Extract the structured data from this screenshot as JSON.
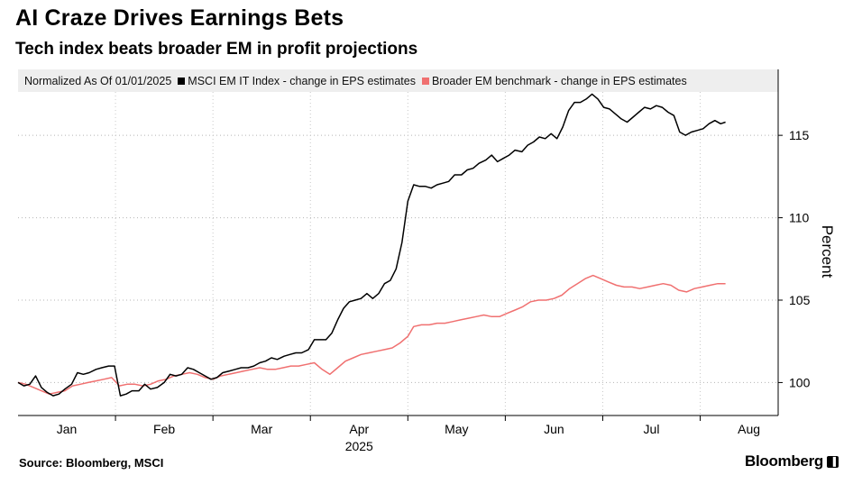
{
  "title": "AI Craze Drives Earnings Bets",
  "subtitle": "Tech index beats broader EM in profit projections",
  "source": "Source: Bloomberg, MSCI",
  "brand": "Bloomberg",
  "legend": {
    "normalized": "Normalized As Of 01/01/2025",
    "series1": "MSCI EM IT Index - change in EPS estimates",
    "series2": "Broader EM benchmark - change in EPS estimates"
  },
  "colors": {
    "series1": "#000000",
    "series2": "#f07070"
  },
  "chart_data": {
    "type": "line",
    "title": "AI Craze Drives Earnings Bets",
    "subtitle": "Tech index beats broader EM in profit projections",
    "ylabel": "Percent",
    "xlabel": "2025",
    "ylim": [
      98,
      119
    ],
    "xlim": [
      0,
      7.8
    ],
    "yticks": [
      100,
      105,
      110,
      115
    ],
    "x_tick_labels": [
      "Jan",
      "Feb",
      "Mar",
      "Apr",
      "May",
      "Jun",
      "Jul",
      "Aug"
    ],
    "x_tick_positions": [
      0.5,
      1.5,
      2.5,
      3.5,
      4.5,
      5.5,
      6.5,
      7.5
    ],
    "year_label": "2025",
    "legend_position": "top",
    "grid": "dotted-horizontal-and-monthly-vertical",
    "series": [
      {
        "name": "MSCI EM IT Index - change in EPS estimates",
        "color": "#000000",
        "points": [
          [
            0.0,
            100.0
          ],
          [
            0.06,
            99.8
          ],
          [
            0.12,
            99.9
          ],
          [
            0.18,
            100.4
          ],
          [
            0.24,
            99.7
          ],
          [
            0.3,
            99.4
          ],
          [
            0.36,
            99.2
          ],
          [
            0.42,
            99.3
          ],
          [
            0.48,
            99.6
          ],
          [
            0.55,
            99.9
          ],
          [
            0.61,
            100.6
          ],
          [
            0.67,
            100.5
          ],
          [
            0.73,
            100.6
          ],
          [
            0.8,
            100.8
          ],
          [
            0.86,
            100.9
          ],
          [
            0.93,
            101.0
          ],
          [
            0.99,
            101.0
          ],
          [
            1.05,
            99.2
          ],
          [
            1.11,
            99.3
          ],
          [
            1.17,
            99.5
          ],
          [
            1.24,
            99.5
          ],
          [
            1.3,
            99.9
          ],
          [
            1.36,
            99.6
          ],
          [
            1.43,
            99.7
          ],
          [
            1.5,
            100.0
          ],
          [
            1.56,
            100.5
          ],
          [
            1.62,
            100.4
          ],
          [
            1.68,
            100.5
          ],
          [
            1.74,
            100.9
          ],
          [
            1.8,
            100.8
          ],
          [
            1.86,
            100.6
          ],
          [
            1.92,
            100.4
          ],
          [
            1.98,
            100.2
          ],
          [
            2.04,
            100.3
          ],
          [
            2.1,
            100.6
          ],
          [
            2.17,
            100.7
          ],
          [
            2.23,
            100.8
          ],
          [
            2.29,
            100.9
          ],
          [
            2.36,
            100.9
          ],
          [
            2.42,
            101.0
          ],
          [
            2.48,
            101.2
          ],
          [
            2.54,
            101.3
          ],
          [
            2.6,
            101.5
          ],
          [
            2.66,
            101.4
          ],
          [
            2.73,
            101.6
          ],
          [
            2.79,
            101.7
          ],
          [
            2.85,
            101.8
          ],
          [
            2.91,
            101.8
          ],
          [
            2.98,
            102.0
          ],
          [
            3.04,
            102.6
          ],
          [
            3.1,
            102.6
          ],
          [
            3.16,
            102.6
          ],
          [
            3.22,
            103.0
          ],
          [
            3.28,
            103.8
          ],
          [
            3.34,
            104.5
          ],
          [
            3.4,
            104.9
          ],
          [
            3.46,
            105.0
          ],
          [
            3.52,
            105.1
          ],
          [
            3.58,
            105.4
          ],
          [
            3.64,
            105.1
          ],
          [
            3.7,
            105.4
          ],
          [
            3.76,
            106.0
          ],
          [
            3.82,
            106.2
          ],
          [
            3.88,
            106.9
          ],
          [
            3.94,
            108.5
          ],
          [
            4.0,
            111.0
          ],
          [
            4.06,
            112.0
          ],
          [
            4.12,
            111.9
          ],
          [
            4.18,
            111.9
          ],
          [
            4.24,
            111.8
          ],
          [
            4.3,
            112.0
          ],
          [
            4.36,
            112.1
          ],
          [
            4.42,
            112.2
          ],
          [
            4.48,
            112.6
          ],
          [
            4.55,
            112.6
          ],
          [
            4.61,
            112.9
          ],
          [
            4.67,
            113.0
          ],
          [
            4.73,
            113.3
          ],
          [
            4.8,
            113.5
          ],
          [
            4.86,
            113.8
          ],
          [
            4.92,
            113.4
          ],
          [
            4.98,
            113.6
          ],
          [
            5.04,
            113.8
          ],
          [
            5.1,
            114.1
          ],
          [
            5.17,
            114.0
          ],
          [
            5.23,
            114.4
          ],
          [
            5.29,
            114.6
          ],
          [
            5.35,
            114.9
          ],
          [
            5.41,
            114.8
          ],
          [
            5.47,
            115.1
          ],
          [
            5.53,
            114.8
          ],
          [
            5.59,
            115.5
          ],
          [
            5.65,
            116.5
          ],
          [
            5.71,
            117.0
          ],
          [
            5.77,
            117.0
          ],
          [
            5.83,
            117.2
          ],
          [
            5.89,
            117.5
          ],
          [
            5.95,
            117.2
          ],
          [
            6.01,
            116.7
          ],
          [
            6.07,
            116.6
          ],
          [
            6.13,
            116.3
          ],
          [
            6.19,
            116.0
          ],
          [
            6.25,
            115.8
          ],
          [
            6.31,
            116.1
          ],
          [
            6.37,
            116.4
          ],
          [
            6.43,
            116.7
          ],
          [
            6.49,
            116.6
          ],
          [
            6.55,
            116.8
          ],
          [
            6.61,
            116.7
          ],
          [
            6.67,
            116.4
          ],
          [
            6.73,
            116.2
          ],
          [
            6.79,
            115.2
          ],
          [
            6.85,
            115.0
          ],
          [
            6.91,
            115.2
          ],
          [
            6.97,
            115.3
          ],
          [
            7.03,
            115.4
          ],
          [
            7.09,
            115.7
          ],
          [
            7.15,
            115.9
          ],
          [
            7.21,
            115.7
          ],
          [
            7.26,
            115.8
          ]
        ]
      },
      {
        "name": "Broader EM benchmark - change in EPS estimates",
        "color": "#f07070",
        "points": [
          [
            0.0,
            100.0
          ],
          [
            0.08,
            99.9
          ],
          [
            0.16,
            99.7
          ],
          [
            0.24,
            99.5
          ],
          [
            0.32,
            99.3
          ],
          [
            0.4,
            99.4
          ],
          [
            0.48,
            99.5
          ],
          [
            0.56,
            99.8
          ],
          [
            0.64,
            99.9
          ],
          [
            0.72,
            100.0
          ],
          [
            0.8,
            100.1
          ],
          [
            0.88,
            100.2
          ],
          [
            0.96,
            100.3
          ],
          [
            1.04,
            99.8
          ],
          [
            1.12,
            99.9
          ],
          [
            1.2,
            99.9
          ],
          [
            1.28,
            99.8
          ],
          [
            1.36,
            99.9
          ],
          [
            1.44,
            100.1
          ],
          [
            1.52,
            100.2
          ],
          [
            1.6,
            100.4
          ],
          [
            1.68,
            100.5
          ],
          [
            1.76,
            100.6
          ],
          [
            1.84,
            100.5
          ],
          [
            1.92,
            100.3
          ],
          [
            2.0,
            100.2
          ],
          [
            2.08,
            100.4
          ],
          [
            2.16,
            100.5
          ],
          [
            2.24,
            100.6
          ],
          [
            2.32,
            100.7
          ],
          [
            2.4,
            100.8
          ],
          [
            2.48,
            100.9
          ],
          [
            2.56,
            100.8
          ],
          [
            2.64,
            100.8
          ],
          [
            2.72,
            100.9
          ],
          [
            2.8,
            101.0
          ],
          [
            2.88,
            101.0
          ],
          [
            2.96,
            101.1
          ],
          [
            3.04,
            101.2
          ],
          [
            3.12,
            100.8
          ],
          [
            3.2,
            100.5
          ],
          [
            3.28,
            100.9
          ],
          [
            3.36,
            101.3
          ],
          [
            3.44,
            101.5
          ],
          [
            3.52,
            101.7
          ],
          [
            3.6,
            101.8
          ],
          [
            3.68,
            101.9
          ],
          [
            3.76,
            102.0
          ],
          [
            3.84,
            102.1
          ],
          [
            3.92,
            102.4
          ],
          [
            4.0,
            102.8
          ],
          [
            4.06,
            103.4
          ],
          [
            4.14,
            103.5
          ],
          [
            4.22,
            103.5
          ],
          [
            4.3,
            103.6
          ],
          [
            4.38,
            103.6
          ],
          [
            4.46,
            103.7
          ],
          [
            4.54,
            103.8
          ],
          [
            4.62,
            103.9
          ],
          [
            4.7,
            104.0
          ],
          [
            4.78,
            104.1
          ],
          [
            4.86,
            104.0
          ],
          [
            4.94,
            104.0
          ],
          [
            5.02,
            104.2
          ],
          [
            5.1,
            104.4
          ],
          [
            5.18,
            104.6
          ],
          [
            5.26,
            104.9
          ],
          [
            5.34,
            105.0
          ],
          [
            5.42,
            105.0
          ],
          [
            5.5,
            105.1
          ],
          [
            5.58,
            105.3
          ],
          [
            5.66,
            105.7
          ],
          [
            5.74,
            106.0
          ],
          [
            5.82,
            106.3
          ],
          [
            5.9,
            106.5
          ],
          [
            5.98,
            106.3
          ],
          [
            6.06,
            106.1
          ],
          [
            6.14,
            105.9
          ],
          [
            6.22,
            105.8
          ],
          [
            6.3,
            105.8
          ],
          [
            6.38,
            105.7
          ],
          [
            6.46,
            105.8
          ],
          [
            6.54,
            105.9
          ],
          [
            6.62,
            106.0
          ],
          [
            6.7,
            105.9
          ],
          [
            6.78,
            105.6
          ],
          [
            6.86,
            105.5
          ],
          [
            6.94,
            105.7
          ],
          [
            7.02,
            105.8
          ],
          [
            7.1,
            105.9
          ],
          [
            7.18,
            106.0
          ],
          [
            7.26,
            106.0
          ]
        ]
      }
    ]
  }
}
